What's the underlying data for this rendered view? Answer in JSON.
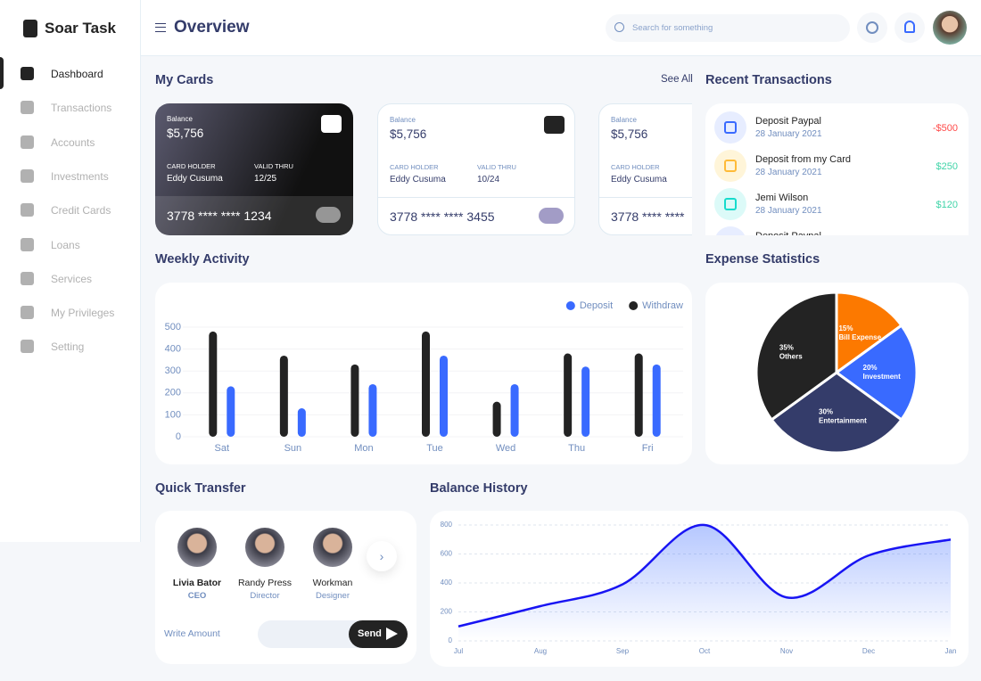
{
  "brand": "Soar Task",
  "nav": [
    "Dashboard",
    "Transactions",
    "Accounts",
    "Investments",
    "Credit Cards",
    "Loans",
    "Services",
    "My Privileges",
    "Setting"
  ],
  "header": {
    "title": "Overview",
    "search_placeholder": "Search for something"
  },
  "my_cards": {
    "title": "My Cards",
    "see_all": "See All",
    "cards": [
      {
        "balance_label": "Balance",
        "balance": "$5,756",
        "holder_label": "CARD HOLDER",
        "holder": "Eddy Cusuma",
        "valid_label": "VALID THRU",
        "valid": "12/25",
        "number": "3778 **** **** 1234"
      },
      {
        "balance_label": "Balance",
        "balance": "$5,756",
        "holder_label": "CARD HOLDER",
        "holder": "Eddy Cusuma",
        "valid_label": "VALID THRU",
        "valid": "10/24",
        "number": "3778 **** **** 3455"
      },
      {
        "balance_label": "Balance",
        "balance": "$5,756",
        "holder_label": "CARD HOLDER",
        "holder": "Eddy Cusuma",
        "number": "3778 **** ****"
      }
    ]
  },
  "recent_transactions": {
    "title": "Recent Transactions",
    "items": [
      {
        "name": "Deposit Paypal",
        "date": "28 January 2021",
        "amount": "-$500"
      },
      {
        "name": "Deposit from my Card",
        "date": "28 January 2021",
        "amount": "$250"
      },
      {
        "name": "Jemi Wilson",
        "date": "28 January 2021",
        "amount": "$120"
      },
      {
        "name": "Deposit Paypal"
      }
    ]
  },
  "quick_transfer": {
    "title": "Quick Transfer",
    "people": [
      {
        "name": "Livia Bator",
        "role": "CEO"
      },
      {
        "name": "Randy Press",
        "role": "Director"
      },
      {
        "name": "Workman",
        "role": "Designer"
      }
    ],
    "amount_placeholder": "Write Amount",
    "send": "Send"
  },
  "chart_data": [
    {
      "type": "bar",
      "title": "Weekly Activity",
      "categories": [
        "Sat",
        "Sun",
        "Mon",
        "Tue",
        "Wed",
        "Thu",
        "Fri"
      ],
      "series": [
        {
          "name": "Deposit",
          "color": "#396AFF",
          "values": [
            230,
            130,
            240,
            370,
            240,
            320,
            330
          ]
        },
        {
          "name": "Withdraw",
          "color": "#232323",
          "values": [
            480,
            370,
            330,
            480,
            160,
            380,
            380
          ]
        }
      ],
      "ylim": [
        0,
        500
      ],
      "yticks": [
        0,
        100,
        200,
        300,
        400,
        500
      ],
      "grid": true,
      "legend": "top-right"
    },
    {
      "type": "pie",
      "title": "Expense Statistics",
      "categories": [
        "Bill Expense",
        "Investment",
        "Entertainment",
        "Others"
      ],
      "values": [
        15,
        20,
        30,
        35
      ],
      "value_labels": [
        "15%",
        "20%",
        "30%",
        "35%"
      ],
      "colors": [
        "#FC7900",
        "#396AFF",
        "#343C6A",
        "#232323"
      ]
    },
    {
      "type": "area",
      "title": "Balance History",
      "categories": [
        "Jul",
        "Aug",
        "Sep",
        "Oct",
        "Nov",
        "Dec",
        "Jan"
      ],
      "values": [
        100,
        240,
        390,
        800,
        300,
        590,
        700
      ],
      "color": "#1814F3",
      "ylim": [
        0,
        800
      ],
      "yticks": [
        0,
        200,
        400,
        600,
        800
      ],
      "grid": true
    }
  ]
}
